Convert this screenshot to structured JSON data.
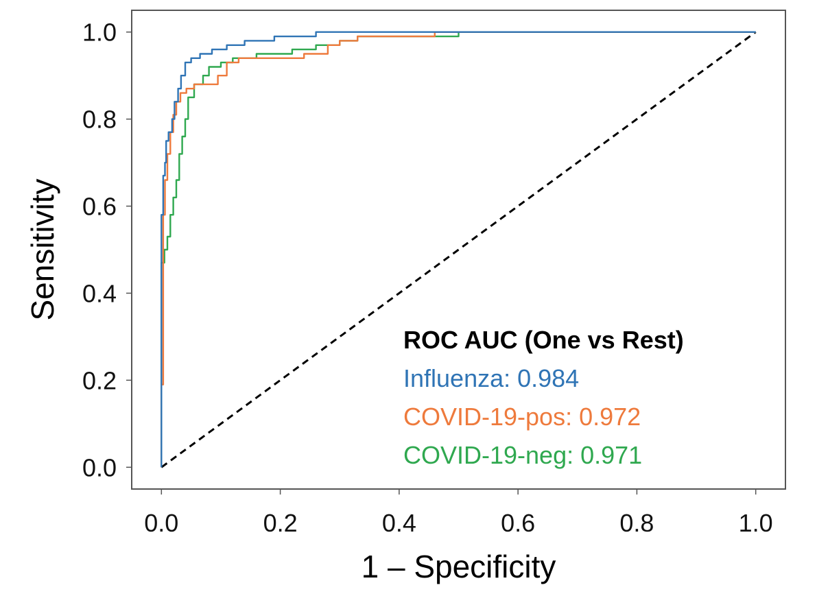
{
  "chart_data": {
    "type": "line",
    "xlabel": "1 – Specificity",
    "ylabel": "Sensitivity",
    "xlim": [
      -0.05,
      1.05
    ],
    "ylim": [
      -0.05,
      1.05
    ],
    "x_ticks": [
      0.0,
      0.2,
      0.4,
      0.6,
      0.8,
      1.0
    ],
    "y_ticks": [
      0.0,
      0.2,
      0.4,
      0.6,
      0.8,
      1.0
    ],
    "x_tick_labels": [
      "0.0",
      "0.2",
      "0.4",
      "0.6",
      "0.8",
      "1.0"
    ],
    "y_tick_labels": [
      "0.0",
      "0.2",
      "0.4",
      "0.6",
      "0.8",
      "1.0"
    ],
    "grid": false,
    "legend": {
      "title": "ROC AUC (One vs Rest)",
      "placement": "bottom-right",
      "entries": [
        "Influenza: 0.984",
        "COVID-19-pos: 0.972",
        "COVID-19-neg: 0.971"
      ]
    },
    "series": [
      {
        "name": "Influenza",
        "auc": 0.984,
        "color": "#2f74b5",
        "style": "step",
        "points": [
          [
            0.0,
            0.0
          ],
          [
            0.0,
            0.58
          ],
          [
            0.003,
            0.67
          ],
          [
            0.006,
            0.7
          ],
          [
            0.008,
            0.75
          ],
          [
            0.012,
            0.77
          ],
          [
            0.018,
            0.8
          ],
          [
            0.022,
            0.84
          ],
          [
            0.028,
            0.87
          ],
          [
            0.033,
            0.9
          ],
          [
            0.04,
            0.93
          ],
          [
            0.05,
            0.94
          ],
          [
            0.065,
            0.95
          ],
          [
            0.085,
            0.96
          ],
          [
            0.11,
            0.97
          ],
          [
            0.14,
            0.98
          ],
          [
            0.19,
            0.99
          ],
          [
            0.26,
            1.0
          ],
          [
            1.0,
            1.0
          ]
        ]
      },
      {
        "name": "COVID-19-pos",
        "auc": 0.972,
        "color": "#ee7a3c",
        "style": "step",
        "points": [
          [
            0.0,
            0.0
          ],
          [
            0.0,
            0.19
          ],
          [
            0.003,
            0.58
          ],
          [
            0.006,
            0.66
          ],
          [
            0.01,
            0.72
          ],
          [
            0.015,
            0.77
          ],
          [
            0.02,
            0.81
          ],
          [
            0.025,
            0.84
          ],
          [
            0.032,
            0.86
          ],
          [
            0.042,
            0.87
          ],
          [
            0.055,
            0.88
          ],
          [
            0.08,
            0.88
          ],
          [
            0.095,
            0.9
          ],
          [
            0.11,
            0.93
          ],
          [
            0.13,
            0.94
          ],
          [
            0.22,
            0.94
          ],
          [
            0.24,
            0.95
          ],
          [
            0.28,
            0.97
          ],
          [
            0.3,
            0.98
          ],
          [
            0.33,
            0.99
          ],
          [
            0.46,
            1.0
          ],
          [
            1.0,
            1.0
          ]
        ]
      },
      {
        "name": "COVID-19-neg",
        "auc": 0.971,
        "color": "#2fa84f",
        "style": "step",
        "points": [
          [
            0.0,
            0.0
          ],
          [
            0.0,
            0.47
          ],
          [
            0.005,
            0.5
          ],
          [
            0.01,
            0.53
          ],
          [
            0.015,
            0.58
          ],
          [
            0.02,
            0.62
          ],
          [
            0.025,
            0.66
          ],
          [
            0.03,
            0.72
          ],
          [
            0.035,
            0.76
          ],
          [
            0.04,
            0.8
          ],
          [
            0.045,
            0.85
          ],
          [
            0.055,
            0.88
          ],
          [
            0.07,
            0.9
          ],
          [
            0.08,
            0.92
          ],
          [
            0.1,
            0.93
          ],
          [
            0.12,
            0.94
          ],
          [
            0.16,
            0.95
          ],
          [
            0.22,
            0.96
          ],
          [
            0.26,
            0.97
          ],
          [
            0.3,
            0.98
          ],
          [
            0.33,
            0.99
          ],
          [
            0.5,
            1.0
          ],
          [
            1.0,
            1.0
          ]
        ]
      },
      {
        "name": "",
        "color": "#000000",
        "style": "dashed",
        "points": [
          [
            0.0,
            0.0
          ],
          [
            1.0,
            1.0
          ]
        ]
      }
    ]
  }
}
